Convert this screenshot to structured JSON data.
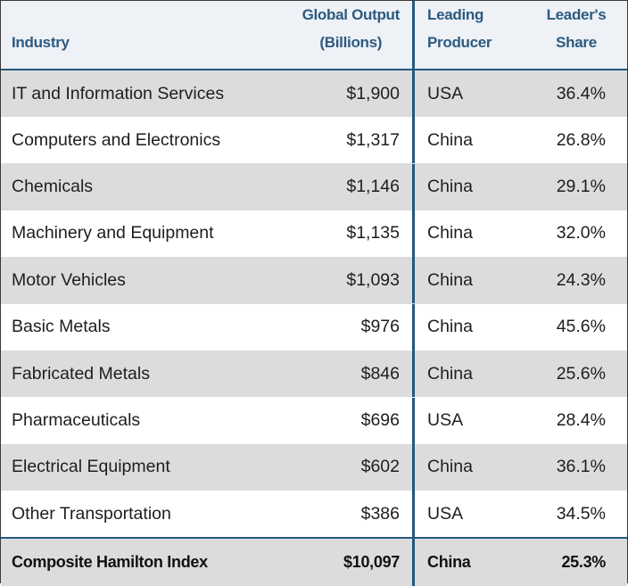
{
  "table": {
    "headers": {
      "industry": "Industry",
      "global_output_line1": "Global Output",
      "global_output_line2": "(Billions)",
      "leading_producer_line1": "Leading",
      "leading_producer_line2": "Producer",
      "leaders_share_line1": "Leader's",
      "leaders_share_line2": "Share"
    },
    "rows": [
      {
        "industry": "IT and Information Services",
        "output": "$1,900",
        "producer": "USA",
        "share": "36.4%"
      },
      {
        "industry": "Computers and Electronics",
        "output": "$1,317",
        "producer": "China",
        "share": "26.8%"
      },
      {
        "industry": "Chemicals",
        "output": "$1,146",
        "producer": "China",
        "share": "29.1%"
      },
      {
        "industry": "Machinery and Equipment",
        "output": "$1,135",
        "producer": "China",
        "share": "32.0%"
      },
      {
        "industry": "Motor Vehicles",
        "output": "$1,093",
        "producer": "China",
        "share": "24.3%"
      },
      {
        "industry": "Basic Metals",
        "output": "$976",
        "producer": "China",
        "share": "45.6%"
      },
      {
        "industry": "Fabricated Metals",
        "output": "$846",
        "producer": "China",
        "share": "25.6%"
      },
      {
        "industry": "Pharmaceuticals",
        "output": "$696",
        "producer": "USA",
        "share": "28.4%"
      },
      {
        "industry": "Electrical Equipment",
        "output": "$602",
        "producer": "China",
        "share": "36.1%"
      },
      {
        "industry": "Other Transportation",
        "output": "$386",
        "producer": "USA",
        "share": "34.5%"
      }
    ],
    "total": {
      "industry": "Composite Hamilton Index",
      "output": "$10,097",
      "producer": "China",
      "share": "25.3%"
    }
  },
  "colors": {
    "header_text": "#2c5a80",
    "divider": "#25587e",
    "header_bg": "#eef1f5",
    "stripe_bg": "#dcdcdc"
  }
}
